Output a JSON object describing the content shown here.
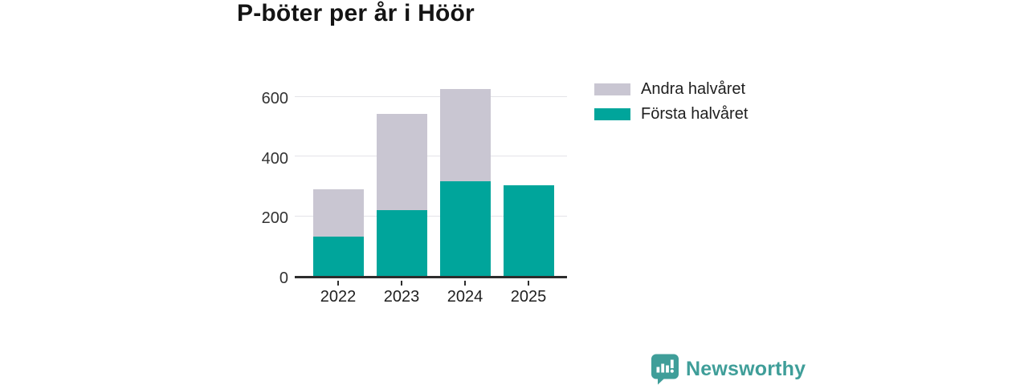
{
  "brand": {
    "name": "Newsworthy",
    "color": "#3f9e99"
  },
  "colors": {
    "teal": "#00a59b",
    "gray": "#c9c6d2",
    "axis": "#2d2d2d",
    "gridline": "#e4e3e8",
    "title_text": "#141414",
    "tick_text": "#333333"
  },
  "chart_data": {
    "type": "bar",
    "stacked": true,
    "title": "P-böter per år i Höör",
    "categories": [
      "2022",
      "2023",
      "2024",
      "2025"
    ],
    "series": [
      {
        "name": "Första halvåret",
        "color": "#00a59b",
        "values": [
          130,
          220,
          315,
          303
        ]
      },
      {
        "name": "Andra halvåret",
        "color": "#c9c6d2",
        "values": [
          160,
          322,
          310,
          0
        ]
      }
    ],
    "totals": [
      290,
      542,
      625,
      303
    ],
    "legend_order": [
      "Andra halvåret",
      "Första halvåret"
    ],
    "xlabel": "",
    "ylabel": "",
    "yticks": [
      0,
      200,
      400,
      600
    ],
    "ylim": [
      0,
      625
    ],
    "grid": true,
    "legend_position": "right-of-plot-top"
  }
}
